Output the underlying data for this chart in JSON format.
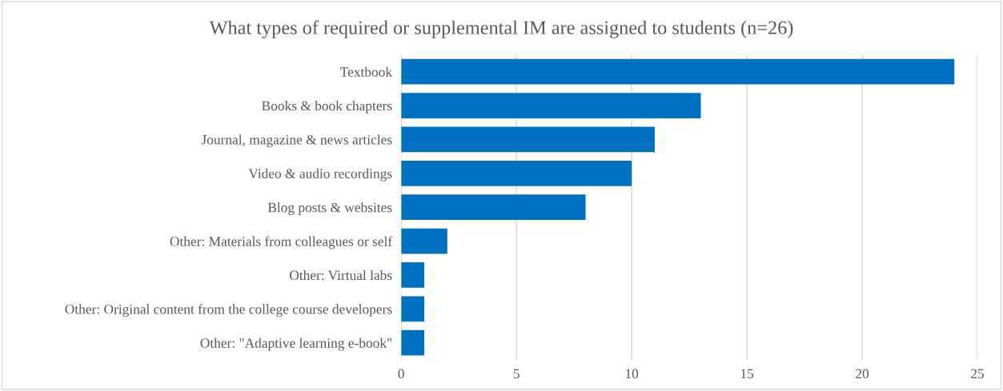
{
  "chart_data": {
    "type": "bar",
    "orientation": "horizontal",
    "title": "What types of required or supplemental IM are assigned to students (n=26)",
    "categories": [
      "Textbook",
      "Books & book chapters",
      "Journal, magazine & news articles",
      "Video & audio recordings",
      "Blog posts & websites",
      "Other: Materials from colleagues or self",
      "Other: Virtual labs",
      "Other: Original content from the college course developers",
      "Other: \"Adaptive learning e-book\""
    ],
    "values": [
      24,
      13,
      11,
      10,
      8,
      2,
      1,
      1,
      1
    ],
    "color": "#0070c0",
    "xlim": [
      0,
      25
    ],
    "xticks": [
      0,
      5,
      10,
      15,
      20,
      25
    ],
    "grid": "x"
  }
}
